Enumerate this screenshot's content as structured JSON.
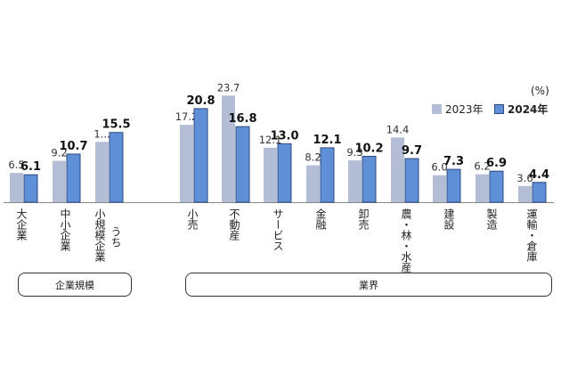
{
  "chart_data": {
    "type": "bar",
    "unit": "(%)",
    "series": [
      {
        "name": "2023年",
        "color": "#b4bdd6",
        "values": [
          6.5,
          9.2,
          null,
          17.2,
          23.7,
          12.1,
          8.2,
          9.3,
          14.4,
          6.0,
          6.2,
          3.6
        ],
        "labels": [
          "6.5",
          "9.2",
          "1...",
          "17.2",
          "23.7",
          "12.1",
          "8.2",
          "9.3",
          "14.4",
          "6.0",
          "6.2",
          "3.6"
        ]
      },
      {
        "name": "2024年",
        "color": "#5f8fd6",
        "values": [
          6.1,
          10.7,
          15.5,
          20.8,
          16.8,
          13.0,
          12.1,
          10.2,
          9.7,
          7.3,
          6.9,
          4.4
        ],
        "labels": [
          "6.1",
          "10.7",
          "15.5",
          "20.8",
          "16.8",
          "13.0",
          "12.1",
          "10.2",
          "9.7",
          "7.3",
          "6.9",
          "4.4"
        ]
      }
    ],
    "categories": [
      "大企業",
      "中小企業",
      "小規模企業",
      "小売",
      "不動産",
      "サービス",
      "金融",
      "卸売",
      "農・林・水産",
      "建設",
      "製造",
      "運輸・倉庫"
    ],
    "category_notes": {
      "小規模企業": "うち"
    },
    "groups": [
      {
        "label": "企業規模",
        "categories": [
          "大企業",
          "中小企業",
          "小規模企業"
        ]
      },
      {
        "label": "業界",
        "categories": [
          "小売",
          "不動産",
          "サービス",
          "金融",
          "卸売",
          "農・林・水産",
          "建設",
          "製造",
          "運輸・倉庫"
        ]
      }
    ]
  }
}
